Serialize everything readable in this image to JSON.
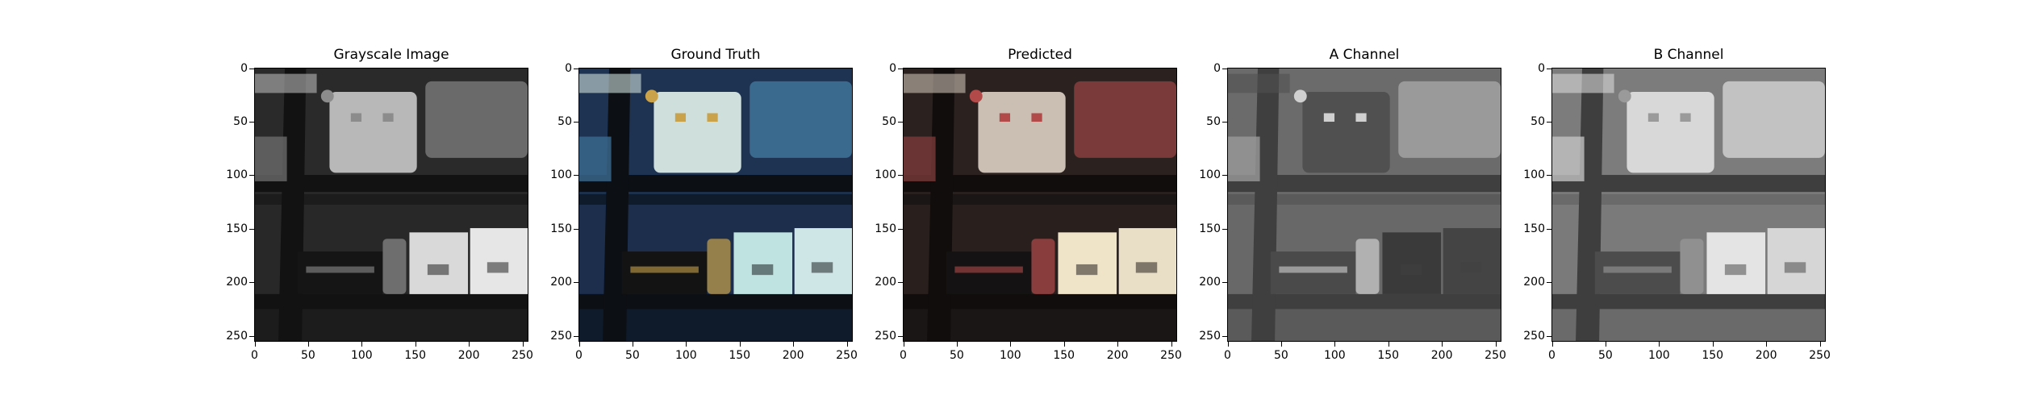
{
  "chart_data": [
    {
      "type": "image",
      "title": "Grayscale Image",
      "xlim": [
        0,
        255
      ],
      "ylim": [
        255,
        0
      ],
      "x_ticks": [
        0,
        50,
        100,
        150,
        200,
        250
      ],
      "y_ticks": [
        0,
        50,
        100,
        150,
        200,
        250
      ],
      "palette": {
        "bg": "#1c1c1c",
        "wall": "#2a2a2a",
        "shelf": "#121212",
        "box1": "#b8b8b8",
        "box2": "#6a6a6a",
        "box3": "#d9d9d9",
        "box4": "#e6e6e6",
        "accent": "#8c8c8c",
        "typewriter": "#151515"
      }
    },
    {
      "type": "image",
      "title": "Ground Truth",
      "xlim": [
        0,
        255
      ],
      "ylim": [
        255,
        0
      ],
      "x_ticks": [
        0,
        50,
        100,
        150,
        200,
        250
      ],
      "y_ticks": [
        0,
        50,
        100,
        150,
        200,
        250
      ],
      "palette": {
        "bg": "#0f1a2a",
        "wall": "#1e3352",
        "shelf": "#0c0f14",
        "box1": "#cfe0dc",
        "box2": "#3b6a8f",
        "box3": "#bfe3e0",
        "box4": "#cfe6e6",
        "accent": "#c9a24a",
        "typewriter": "#131313"
      }
    },
    {
      "type": "image",
      "title": "Predicted",
      "xlim": [
        0,
        255
      ],
      "ylim": [
        255,
        0
      ],
      "x_ticks": [
        0,
        50,
        100,
        150,
        200,
        250
      ],
      "y_ticks": [
        0,
        50,
        100,
        150,
        200,
        250
      ],
      "palette": {
        "bg": "#1b1616",
        "wall": "#2b2220",
        "shelf": "#110d0c",
        "box1": "#cbbfb4",
        "box2": "#7a3a3a",
        "box3": "#efe3c8",
        "box4": "#e9dfc6",
        "accent": "#b24a4a",
        "typewriter": "#141212"
      }
    },
    {
      "type": "image",
      "title": "A Channel",
      "xlim": [
        0,
        255
      ],
      "ylim": [
        255,
        0
      ],
      "x_ticks": [
        0,
        50,
        100,
        150,
        200,
        250
      ],
      "y_ticks": [
        0,
        50,
        100,
        150,
        200,
        250
      ],
      "palette": {
        "bg": "#5a5a5a",
        "wall": "#6b6b6b",
        "shelf": "#3f3f3f",
        "box1": "#505050",
        "box2": "#9a9a9a",
        "box3": "#3a3a3a",
        "box4": "#444444",
        "accent": "#d0d0d0",
        "typewriter": "#4a4a4a"
      }
    },
    {
      "type": "image",
      "title": "B Channel",
      "xlim": [
        0,
        255
      ],
      "ylim": [
        255,
        0
      ],
      "x_ticks": [
        0,
        50,
        100,
        150,
        200,
        250
      ],
      "y_ticks": [
        0,
        50,
        100,
        150,
        200,
        250
      ],
      "palette": {
        "bg": "#6a6a6a",
        "wall": "#7c7c7c",
        "shelf": "#3e3e3e",
        "box1": "#d8d8d8",
        "box2": "#c2c2c2",
        "box3": "#e4e4e4",
        "box4": "#d6d6d6",
        "accent": "#9a9a9a",
        "typewriter": "#4c4c4c"
      }
    }
  ]
}
